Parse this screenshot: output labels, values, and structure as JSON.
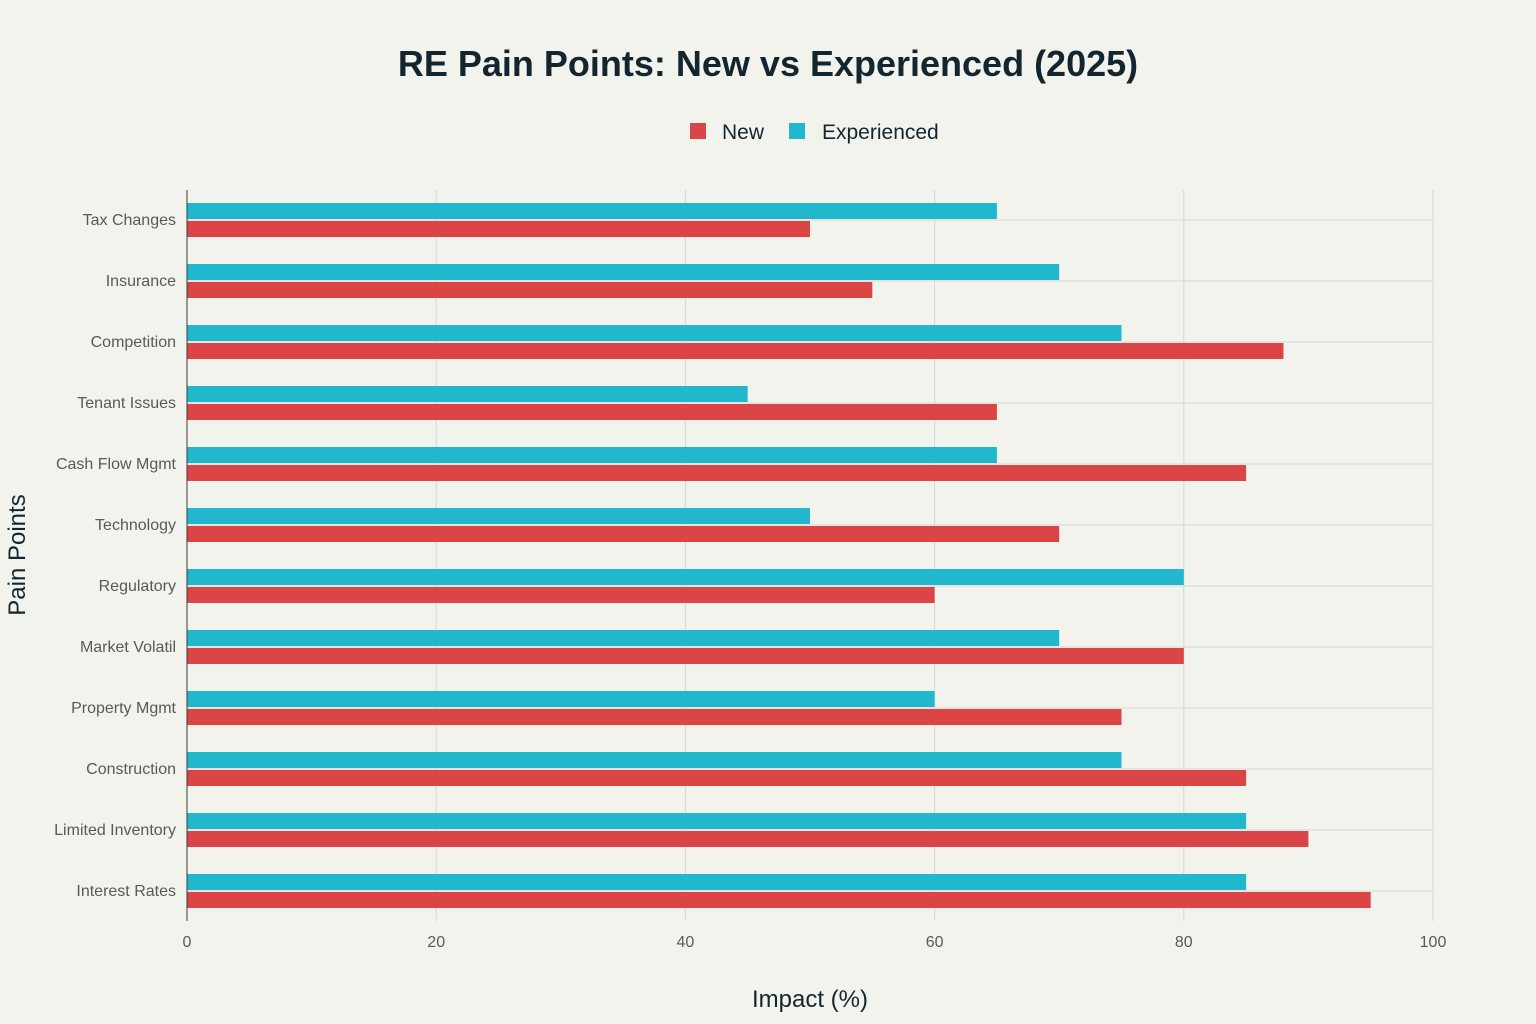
{
  "chart_data": {
    "type": "bar",
    "orientation": "horizontal",
    "title": "RE Pain Points: New vs Experienced (2025)",
    "xlabel": "Impact (%)",
    "ylabel": "Pain Points",
    "xlim": [
      0,
      100
    ],
    "xticks": [
      "0",
      "20",
      "40",
      "60",
      "80",
      "100"
    ],
    "grid": true,
    "legend_position": "top-center",
    "categories": [
      "Tax Changes",
      "Insurance",
      "Competition",
      "Tenant Issues",
      "Cash Flow Mgmt",
      "Technology",
      "Regulatory",
      "Market Volatil",
      "Property Mgmt",
      "Construction",
      "Limited Inventory",
      "Interest Rates"
    ],
    "series": [
      {
        "name": "New",
        "color": "#db4545",
        "values": [
          50,
          55,
          88,
          65,
          85,
          70,
          60,
          80,
          75,
          85,
          90,
          95
        ]
      },
      {
        "name": "Experienced",
        "color": "#21b8cd",
        "values": [
          65,
          70,
          75,
          45,
          65,
          50,
          80,
          70,
          60,
          75,
          85,
          85
        ]
      }
    ]
  }
}
